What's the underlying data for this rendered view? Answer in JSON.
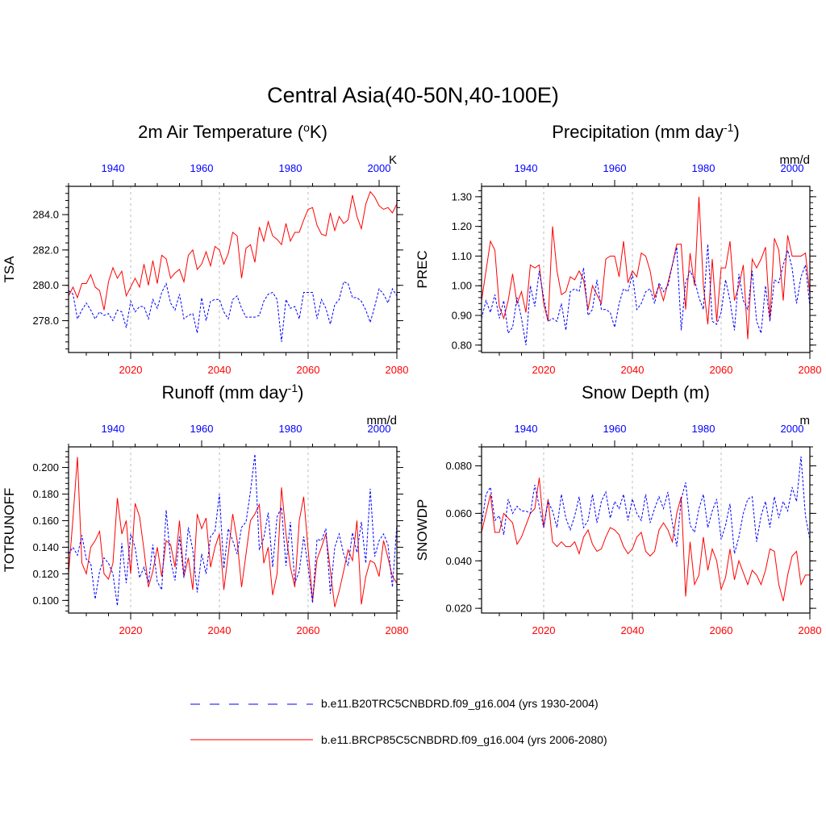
{
  "figure_title": "Central Asia(40-50N,40-100E)",
  "colors": {
    "red": "#ff0000",
    "blue": "#0000ff",
    "grid": "#bbbbbb",
    "axis": "#000000"
  },
  "legend": [
    {
      "name": "b.e11.B20TRC5CNBDRD.f09_g16.004 (yrs 1930-2004)",
      "color": "#0000ff",
      "style": "dashed"
    },
    {
      "name": "b.e11.BRCP85C5CNBDRD.f09_g16.004 (yrs 2006-2080)",
      "color": "#ff0000",
      "style": "solid"
    }
  ],
  "chart_data": [
    {
      "type": "line",
      "title_main": "2m Air Temperature (",
      "title_sup": "o",
      "title_end": "K)",
      "ylabel": "TSA",
      "units": "K",
      "xlim_bottom": [
        2006,
        2080
      ],
      "xlim_top": [
        1930,
        2004
      ],
      "bottom_ticks": [
        "2020",
        "2040",
        "2060",
        "2080"
      ],
      "top_ticks": [
        "1940",
        "1960",
        "1980",
        "2000"
      ],
      "ylim": [
        276.2,
        285.6
      ],
      "yticks": [
        "278.0",
        "280.0",
        "282.0",
        "284.0"
      ],
      "series": [
        {
          "name": "b.e11.BRCP85C5CNBDRD.f09_g16.004 (yrs 2006-2080)",
          "style": "solid",
          "values": [
            279.4,
            279.9,
            279.3,
            280.1,
            280.1,
            280.6,
            279.9,
            279.7,
            278.6,
            280.2,
            281.0,
            280.4,
            280.8,
            279.4,
            279.9,
            280.4,
            279.9,
            281.2,
            280.0,
            281.4,
            280.1,
            281.7,
            281.5,
            280.4,
            280.7,
            280.9,
            280.2,
            281.7,
            282.0,
            280.9,
            281.2,
            281.9,
            281.1,
            282.2,
            282.0,
            281.2,
            281.8,
            283.0,
            282.8,
            280.4,
            282.1,
            282.3,
            281.3,
            283.3,
            282.5,
            283.6,
            282.8,
            282.6,
            282.3,
            283.5,
            282.5,
            283.0,
            283.0,
            283.7,
            284.3,
            284.4,
            283.4,
            282.9,
            282.8,
            284.1,
            283.1,
            283.9,
            283.5,
            283.7,
            285.1,
            283.9,
            283.2,
            284.6,
            285.3,
            285.0,
            284.5,
            284.3,
            284.4,
            284.1,
            284.6
          ]
        },
        {
          "name": "b.e11.B20TRC5CNBDRD.f09_g16.004 (yrs 1930-2004)",
          "style": "dashed",
          "values": [
            279.7,
            279.5,
            278.1,
            278.6,
            279.0,
            278.6,
            278.1,
            278.5,
            278.3,
            278.4,
            278.0,
            278.6,
            278.5,
            277.6,
            279.1,
            278.5,
            278.8,
            278.8,
            278.1,
            279.2,
            278.7,
            279.6,
            280.1,
            279.0,
            278.6,
            279.5,
            278.1,
            278.3,
            278.4,
            277.3,
            279.3,
            278.0,
            279.1,
            279.2,
            279.2,
            278.5,
            278.1,
            279.2,
            279.4,
            278.7,
            278.2,
            278.2,
            278.2,
            278.3,
            279.1,
            279.5,
            279.6,
            279.2,
            276.8,
            279.2,
            278.7,
            278.8,
            278.1,
            279.6,
            279.6,
            279.6,
            278.1,
            279.2,
            278.7,
            277.8,
            278.9,
            279.2,
            280.2,
            280.1,
            279.3,
            279.3,
            279.1,
            278.6,
            277.9,
            278.8,
            279.8,
            279.5,
            279.0,
            279.8,
            279.4
          ]
        }
      ]
    },
    {
      "type": "line",
      "title_main": "Precipitation (mm day",
      "title_sup": "-1",
      "title_end": ")",
      "ylabel": "PREC",
      "units": "mm/d",
      "xlim_bottom": [
        2006,
        2080
      ],
      "xlim_top": [
        1930,
        2004
      ],
      "bottom_ticks": [
        "2020",
        "2040",
        "2060",
        "2080"
      ],
      "top_ticks": [
        "1940",
        "1960",
        "1980",
        "2000"
      ],
      "ylim": [
        0.775,
        1.335
      ],
      "yticks": [
        "0.80",
        "0.90",
        "1.00",
        "1.10",
        "1.20",
        "1.30"
      ],
      "series": [
        {
          "name": "b.e11.BRCP85C5CNBDRD.f09_g16.004 (yrs 2006-2080)",
          "style": "solid",
          "values": [
            0.95,
            1.05,
            1.15,
            1.12,
            0.93,
            0.89,
            0.95,
            1.04,
            0.94,
            0.98,
            0.91,
            1.07,
            1.06,
            1.07,
            0.94,
            0.88,
            1.2,
            1.05,
            0.97,
            0.98,
            1.03,
            1.02,
            1.05,
            1.02,
            0.92,
            1.0,
            0.97,
            0.94,
            1.09,
            1.1,
            1.1,
            1.03,
            1.15,
            1.01,
            1.05,
            1.03,
            1.11,
            1.1,
            1.05,
            0.96,
            1.0,
            0.95,
            1.01,
            1.07,
            1.14,
            1.14,
            0.92,
            1.11,
            1.0,
            1.3,
            1.0,
            0.87,
            1.09,
            0.88,
            1.06,
            1.06,
            1.15,
            0.95,
            1.0,
            1.07,
            0.82,
            1.09,
            1.06,
            1.09,
            1.13,
            0.89,
            1.16,
            1.12,
            0.95,
            1.17,
            1.1,
            1.1,
            1.1,
            1.11,
            0.97
          ]
        },
        {
          "name": "b.e11.B20TRC5CNBDRD.f09_g16.004 (yrs 1930-2004)",
          "style": "dashed",
          "values": [
            0.89,
            0.95,
            0.91,
            0.97,
            0.89,
            0.95,
            0.84,
            0.86,
            0.96,
            0.89,
            0.8,
            1.0,
            0.93,
            1.05,
            0.96,
            0.88,
            0.89,
            0.88,
            0.94,
            0.85,
            0.98,
            0.99,
            0.98,
            1.06,
            0.9,
            0.92,
            1.02,
            0.92,
            0.92,
            0.91,
            0.86,
            0.94,
            0.99,
            0.98,
            1.04,
            0.92,
            0.94,
            0.98,
            0.99,
            0.94,
            1.01,
            0.98,
            1.0,
            1.07,
            1.13,
            0.85,
            1.01,
            1.05,
            1.02,
            0.96,
            0.92,
            1.14,
            0.88,
            0.87,
            0.91,
            1.02,
            0.95,
            0.85,
            1.04,
            0.95,
            0.92,
            1.05,
            0.88,
            0.84,
            1.0,
            0.88,
            1.02,
            1.01,
            1.07,
            1.12,
            1.06,
            0.94,
            1.03,
            1.07,
            0.93
          ]
        }
      ]
    },
    {
      "type": "line",
      "title_main": "Runoff (mm day",
      "title_sup": "-1",
      "title_end": ")",
      "ylabel": "TOTRUNOFF",
      "units": "mm/d",
      "xlim_bottom": [
        2006,
        2080
      ],
      "xlim_top": [
        1930,
        2004
      ],
      "bottom_ticks": [
        "2020",
        "2040",
        "2060",
        "2080"
      ],
      "top_ticks": [
        "1940",
        "1960",
        "1980",
        "2000"
      ],
      "ylim": [
        0.0905,
        0.2155
      ],
      "yticks": [
        "0.100",
        "0.120",
        "0.140",
        "0.160",
        "0.180",
        "0.200"
      ],
      "series": [
        {
          "name": "b.e11.BRCP85C5CNBDRD.f09_g16.004 (yrs 2006-2080)",
          "style": "solid",
          "values": [
            0.12,
            0.162,
            0.208,
            0.128,
            0.12,
            0.14,
            0.145,
            0.152,
            0.12,
            0.116,
            0.128,
            0.177,
            0.15,
            0.16,
            0.12,
            0.173,
            0.163,
            0.138,
            0.11,
            0.122,
            0.14,
            0.118,
            0.145,
            0.142,
            0.125,
            0.16,
            0.118,
            0.132,
            0.108,
            0.165,
            0.154,
            0.162,
            0.125,
            0.14,
            0.15,
            0.108,
            0.135,
            0.165,
            0.145,
            0.11,
            0.135,
            0.16,
            0.165,
            0.172,
            0.128,
            0.14,
            0.104,
            0.12,
            0.185,
            0.15,
            0.125,
            0.11,
            0.16,
            0.178,
            0.138,
            0.1,
            0.131,
            0.14,
            0.15,
            0.123,
            0.095,
            0.107,
            0.122,
            0.138,
            0.13,
            0.16,
            0.097,
            0.118,
            0.13,
            0.128,
            0.118,
            0.145,
            0.132,
            0.118,
            0.113
          ]
        },
        {
          "name": "b.e11.B20TRC5CNBDRD.f09_g16.004 (yrs 1930-2004)",
          "style": "dashed",
          "values": [
            0.135,
            0.14,
            0.134,
            0.149,
            0.131,
            0.128,
            0.101,
            0.122,
            0.132,
            0.128,
            0.12,
            0.096,
            0.143,
            0.113,
            0.15,
            0.14,
            0.117,
            0.125,
            0.113,
            0.142,
            0.114,
            0.108,
            0.168,
            0.13,
            0.115,
            0.148,
            0.117,
            0.155,
            0.138,
            0.106,
            0.135,
            0.12,
            0.148,
            0.152,
            0.18,
            0.124,
            0.154,
            0.145,
            0.135,
            0.155,
            0.159,
            0.182,
            0.21,
            0.138,
            0.147,
            0.166,
            0.125,
            0.163,
            0.17,
            0.126,
            0.159,
            0.113,
            0.122,
            0.148,
            0.125,
            0.098,
            0.146,
            0.145,
            0.154,
            0.105,
            0.14,
            0.15,
            0.135,
            0.126,
            0.151,
            0.136,
            0.159,
            0.128,
            0.184,
            0.133,
            0.145,
            0.15,
            0.142,
            0.11,
            0.157
          ]
        }
      ]
    },
    {
      "type": "line",
      "title_main": "Snow Depth (m)",
      "title_sup": "",
      "title_end": "",
      "ylabel": "SNOWDP",
      "units": "m",
      "xlim_bottom": [
        2006,
        2080
      ],
      "xlim_top": [
        1930,
        2004
      ],
      "bottom_ticks": [
        "2020",
        "2040",
        "2060",
        "2080"
      ],
      "top_ticks": [
        "1940",
        "1960",
        "1980",
        "2000"
      ],
      "ylim": [
        0.018,
        0.088
      ],
      "yticks": [
        "0.020",
        "0.040",
        "0.060",
        "0.080"
      ],
      "series": [
        {
          "name": "b.e11.BRCP85C5CNBDRD.f09_g16.004 (yrs 2006-2080)",
          "style": "solid",
          "values": [
            0.052,
            0.06,
            0.068,
            0.052,
            0.052,
            0.06,
            0.058,
            0.056,
            0.047,
            0.05,
            0.055,
            0.06,
            0.062,
            0.075,
            0.054,
            0.066,
            0.048,
            0.046,
            0.048,
            0.046,
            0.046,
            0.048,
            0.043,
            0.05,
            0.053,
            0.047,
            0.044,
            0.045,
            0.05,
            0.054,
            0.053,
            0.051,
            0.046,
            0.043,
            0.045,
            0.05,
            0.052,
            0.044,
            0.042,
            0.044,
            0.053,
            0.056,
            0.053,
            0.048,
            0.06,
            0.067,
            0.025,
            0.048,
            0.03,
            0.034,
            0.05,
            0.036,
            0.045,
            0.04,
            0.028,
            0.033,
            0.045,
            0.032,
            0.04,
            0.035,
            0.03,
            0.036,
            0.034,
            0.03,
            0.036,
            0.045,
            0.044,
            0.03,
            0.023,
            0.034,
            0.042,
            0.044,
            0.03,
            0.034,
            0.034
          ]
        },
        {
          "name": "b.e11.B20TRC5CNBDRD.f09_g16.004 (yrs 1930-2004)",
          "style": "dashed",
          "values": [
            0.055,
            0.068,
            0.071,
            0.057,
            0.059,
            0.051,
            0.066,
            0.06,
            0.063,
            0.061,
            0.061,
            0.06,
            0.072,
            0.063,
            0.054,
            0.065,
            0.061,
            0.054,
            0.068,
            0.058,
            0.053,
            0.059,
            0.067,
            0.054,
            0.057,
            0.068,
            0.056,
            0.065,
            0.069,
            0.058,
            0.065,
            0.062,
            0.068,
            0.057,
            0.066,
            0.06,
            0.057,
            0.068,
            0.056,
            0.062,
            0.067,
            0.062,
            0.069,
            0.056,
            0.046,
            0.066,
            0.073,
            0.055,
            0.052,
            0.062,
            0.068,
            0.054,
            0.061,
            0.066,
            0.049,
            0.055,
            0.064,
            0.043,
            0.05,
            0.06,
            0.066,
            0.067,
            0.048,
            0.059,
            0.065,
            0.054,
            0.067,
            0.058,
            0.065,
            0.061,
            0.071,
            0.065,
            0.084,
            0.059,
            0.049
          ]
        }
      ]
    }
  ]
}
